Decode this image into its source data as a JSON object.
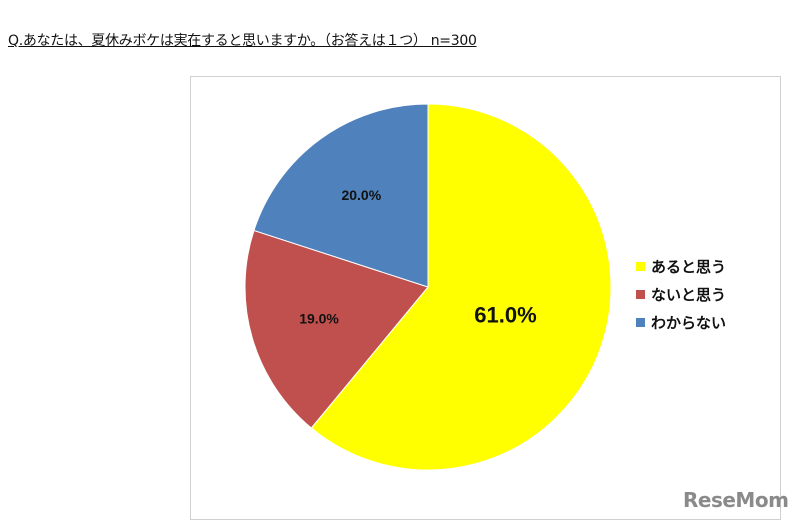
{
  "title": "Q.あなたは、夏休みボケは実在すると思いますか。（お答えは１つ） n=300",
  "watermark": "ReseMom",
  "chart_data": {
    "type": "pie",
    "title": "Q.あなたは、夏休みボケは実在すると思いますか。（お答えは１つ） n=300",
    "categories": [
      "あると思う",
      "ないと思う",
      "わからない"
    ],
    "values": [
      61.0,
      19.0,
      20.0
    ],
    "labels": [
      "61.0%",
      "19.0%",
      "20.0%"
    ],
    "colors": [
      "#FFFF00",
      "#C0504D",
      "#4F81BD"
    ],
    "start_angle": "12 o'clock",
    "direction": "clockwise",
    "legend_position": "right"
  }
}
